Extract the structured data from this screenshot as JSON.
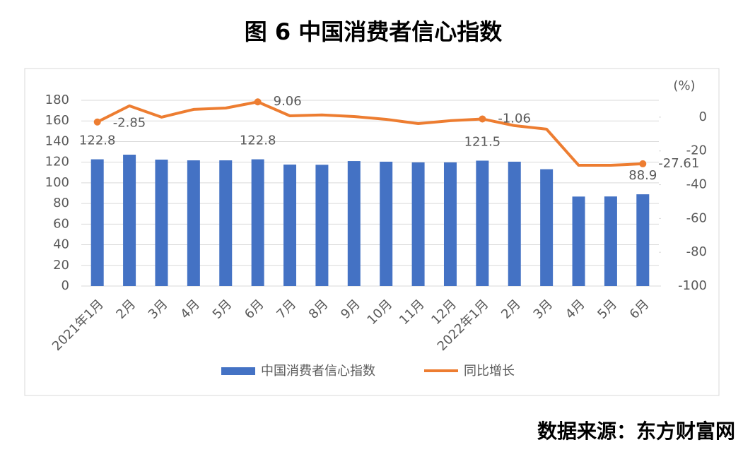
{
  "chart_data": {
    "type": "bar-line",
    "title": "图 6  中国消费者信心指数",
    "source": "数据来源：东方财富网",
    "y2_unit": "(%)",
    "categories": [
      "2021年1月",
      "2月",
      "3月",
      "4月",
      "5月",
      "6月",
      "7月",
      "8月",
      "9月",
      "10月",
      "11月",
      "12月",
      "2022年1月",
      "2月",
      "3月",
      "4月",
      "5月",
      "6月"
    ],
    "series": [
      {
        "name": "中国消费者信心指数",
        "type": "bar",
        "color": "#4472c4",
        "values": [
          122.8,
          127.3,
          122.5,
          121.8,
          121.8,
          122.8,
          117.7,
          117.5,
          121.1,
          120.5,
          119.8,
          119.8,
          121.5,
          120.5,
          113.2,
          86.7,
          86.8,
          88.9
        ],
        "value_labels": [
          "122.8",
          null,
          null,
          null,
          null,
          "122.8",
          null,
          null,
          null,
          null,
          null,
          null,
          "121.5",
          null,
          null,
          null,
          null,
          "88.9"
        ]
      },
      {
        "name": "同比增长",
        "type": "line",
        "axis": "y2",
        "color": "#ed7d31",
        "values": [
          -2.85,
          6.7,
          0,
          4.6,
          5.4,
          9.06,
          0.8,
          1.3,
          0.4,
          -1.3,
          -3.8,
          -2.1,
          -1.06,
          -5,
          -7.1,
          -28.5,
          -28.5,
          -27.61
        ],
        "value_labels": [
          "-2.85",
          null,
          null,
          null,
          null,
          "9.06",
          null,
          null,
          null,
          null,
          null,
          null,
          "-1.06",
          null,
          null,
          null,
          null,
          "-27.61"
        ]
      }
    ],
    "ylim": [
      0,
      180
    ],
    "yticks": [
      0,
      20,
      40,
      60,
      80,
      100,
      120,
      140,
      160,
      180
    ],
    "y2lim": [
      -100,
      10
    ],
    "y2ticks": [
      -100,
      -80,
      -60,
      -40,
      -20,
      0
    ],
    "grid": true,
    "legend": "bottom"
  }
}
